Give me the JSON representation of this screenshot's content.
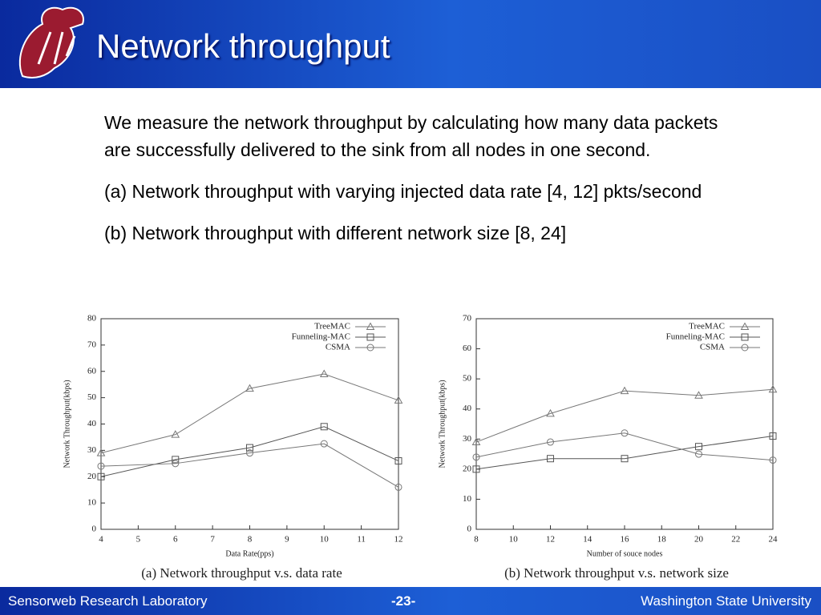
{
  "header": {
    "title": "Network throughput"
  },
  "body": {
    "paragraphs": [
      "We measure the network throughput by calculating how many data packets are successfully delivered to the sink from all nodes in one second.",
      "(a) Network throughput with varying injected data rate [4, 12] pkts/second",
      "(b) Network throughput with different network size [8, 24]"
    ]
  },
  "footer": {
    "left": "Sensorweb Research Laboratory",
    "center": "-23-",
    "right": "Washington State University"
  },
  "chart_data": [
    {
      "type": "line",
      "caption": "(a) Network throughput v.s. data rate",
      "x_label": "Data Rate(pps)",
      "y_label": "Network Throughput(kbps)",
      "x": [
        4,
        6,
        8,
        10,
        12
      ],
      "xlim": [
        4,
        12
      ],
      "xticks": [
        4,
        5,
        6,
        7,
        8,
        9,
        10,
        11,
        12
      ],
      "ylim": [
        0,
        80
      ],
      "yticks": [
        0,
        10,
        20,
        30,
        40,
        50,
        60,
        70,
        80
      ],
      "legend": "upper right",
      "series": [
        {
          "name": "TreeMAC",
          "color": "#777777",
          "marker": "triangle",
          "values": [
            29,
            36,
            53.5,
            59,
            49
          ]
        },
        {
          "name": "Funneling-MAC",
          "color": "#555555",
          "marker": "square",
          "values": [
            20,
            26.5,
            31,
            39,
            26
          ]
        },
        {
          "name": "CSMA",
          "color": "#777777",
          "marker": "circle",
          "values": [
            24,
            25,
            29,
            32.5,
            16
          ]
        }
      ]
    },
    {
      "type": "line",
      "caption": "(b) Network throughput v.s. network size",
      "x_label": "Number of souce nodes",
      "y_label": "Network Throughput(kbps)",
      "x": [
        8,
        12,
        16,
        20,
        24
      ],
      "xlim": [
        8,
        24
      ],
      "xticks": [
        8,
        10,
        12,
        14,
        16,
        18,
        20,
        22,
        24
      ],
      "ylim": [
        0,
        70
      ],
      "yticks": [
        0,
        10,
        20,
        30,
        40,
        50,
        60,
        70
      ],
      "legend": "upper right",
      "series": [
        {
          "name": "TreeMAC",
          "color": "#777777",
          "marker": "triangle",
          "values": [
            29,
            38.5,
            46,
            44.5,
            46.5
          ]
        },
        {
          "name": "Funneling-MAC",
          "color": "#555555",
          "marker": "square",
          "values": [
            20,
            23.5,
            23.5,
            27.5,
            31
          ]
        },
        {
          "name": "CSMA",
          "color": "#777777",
          "marker": "circle",
          "values": [
            24,
            29,
            32,
            25,
            23
          ]
        }
      ]
    }
  ]
}
